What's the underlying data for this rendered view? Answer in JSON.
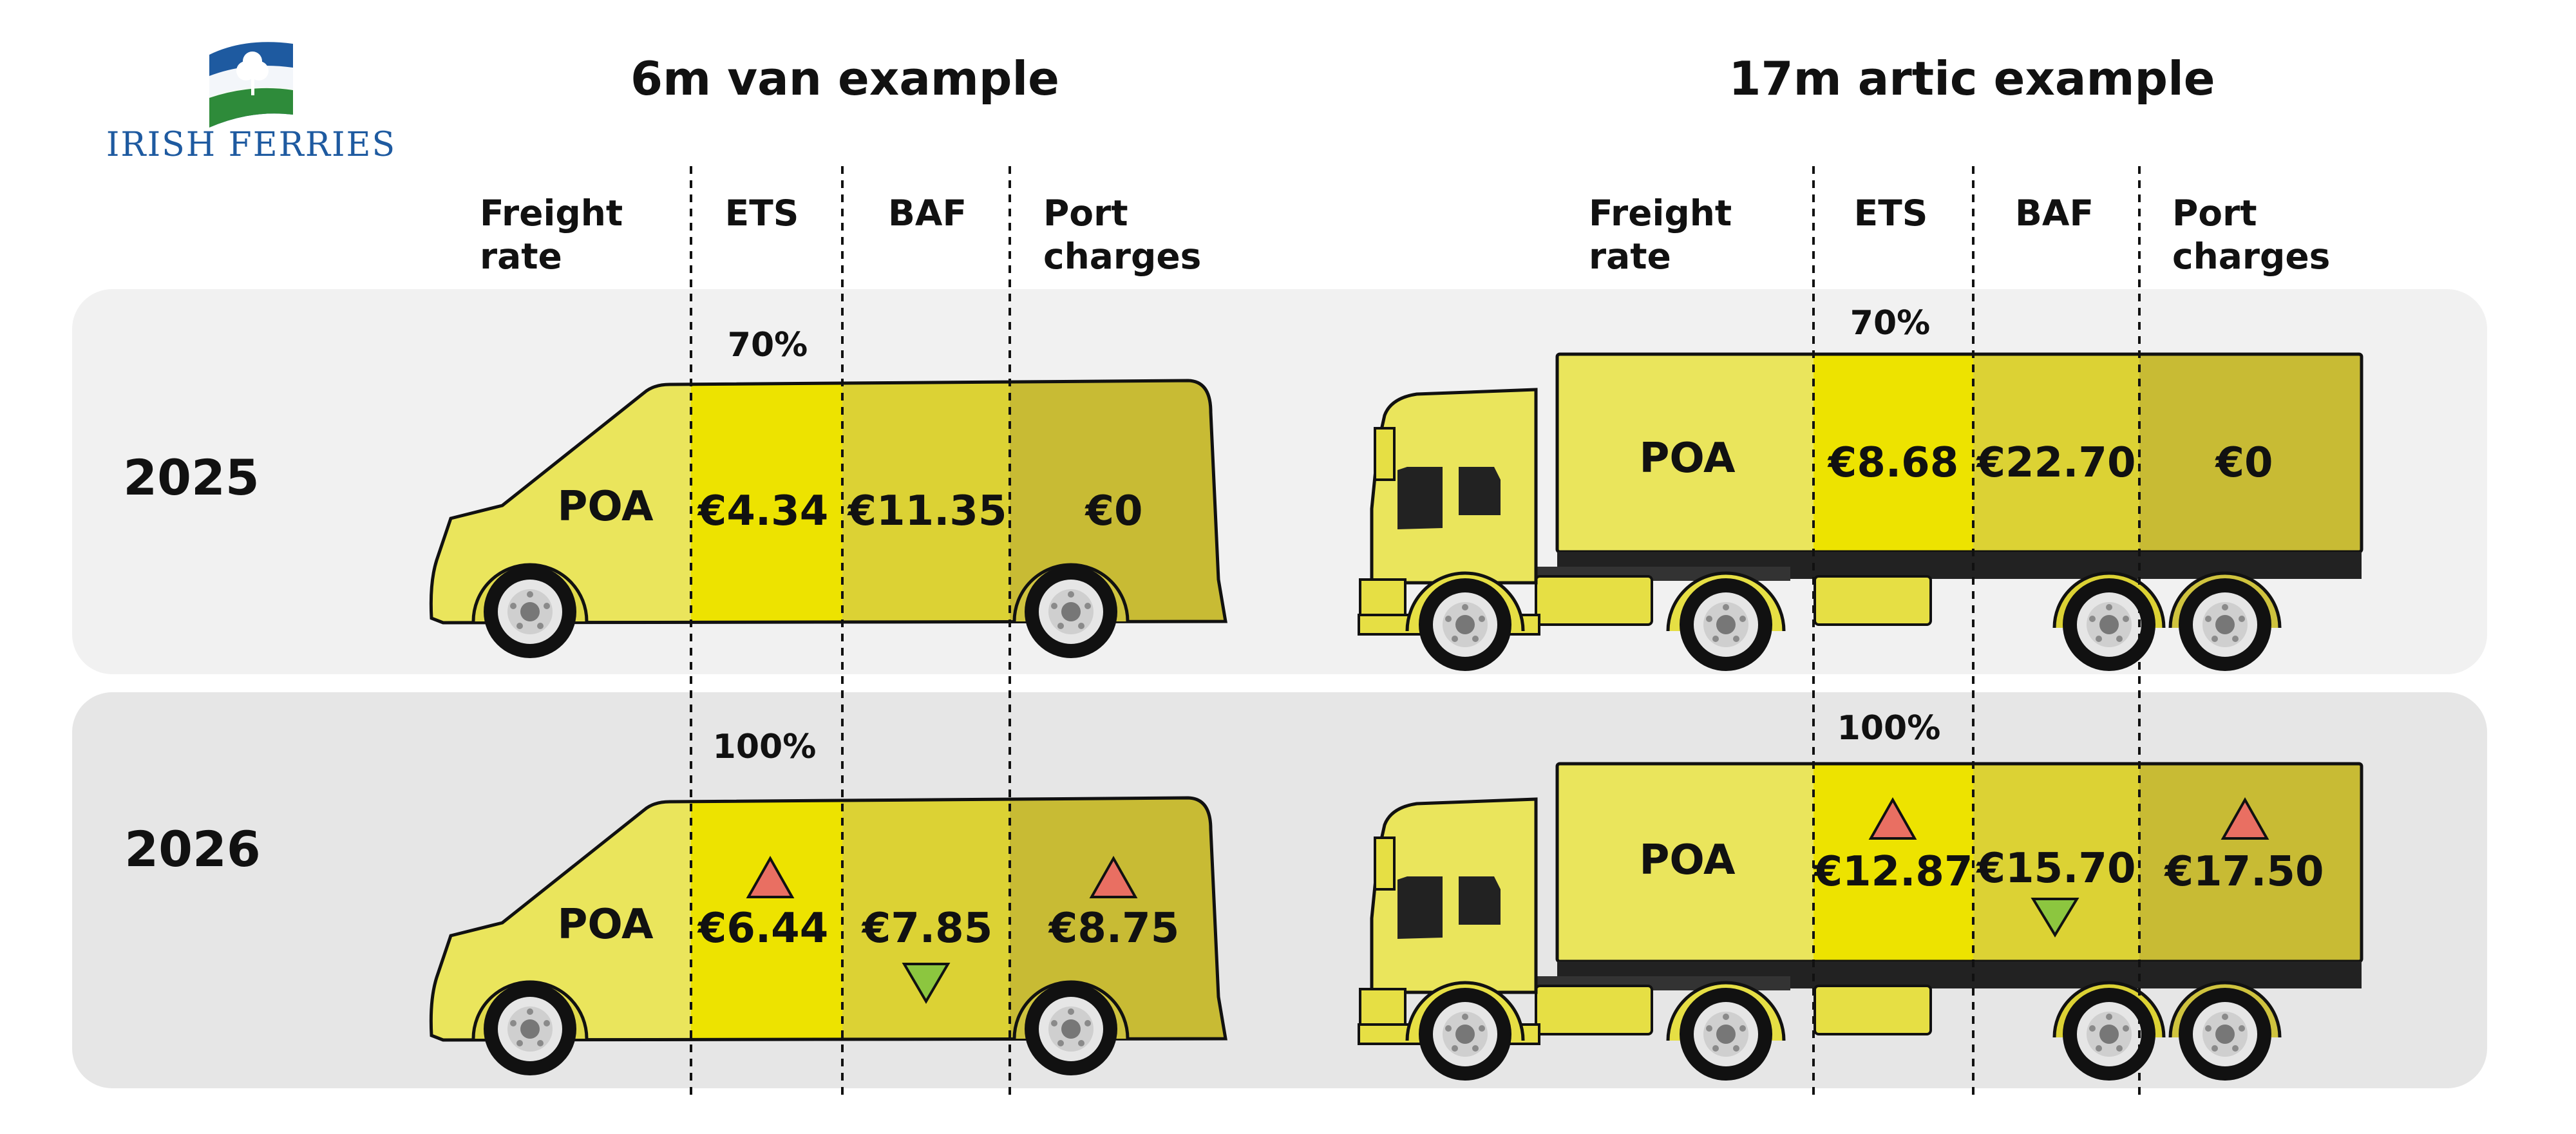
{
  "brand": {
    "name": "IRISH FERRIES"
  },
  "titles": {
    "van": "6m van example",
    "artic": "17m artic example"
  },
  "columns": {
    "freight": [
      "Freight",
      "rate"
    ],
    "ets": "ETS",
    "baf": "BAF",
    "port": [
      "Port",
      "charges"
    ]
  },
  "years": [
    {
      "year": "2025",
      "ets_percent": "70%",
      "van": {
        "freight": "POA",
        "ets": "€4.34",
        "baf": "€11.35",
        "port": "€0"
      },
      "artic": {
        "freight": "POA",
        "ets": "€8.68",
        "baf": "€22.70",
        "port": "€0"
      }
    },
    {
      "year": "2026",
      "ets_percent": "100%",
      "van": {
        "freight": "POA",
        "ets": "€6.44",
        "baf": "€7.85",
        "port": "€8.75"
      },
      "artic": {
        "freight": "POA",
        "ets": "€12.87",
        "baf": "€15.70",
        "port": "€17.50"
      }
    }
  ],
  "trend_2026": {
    "ets": "up",
    "baf": "down",
    "port": "up"
  },
  "colors": {
    "freight": "#eae55c",
    "ets": "#ede300",
    "baf": "#dcd234",
    "port": "#c8bb34",
    "row_2025": "#f1f1f1",
    "row_2026": "#e6e6e6",
    "up_arrow": "#e96f62",
    "down_arrow": "#8cc63f",
    "brand_blue": "#1e5aa0",
    "brand_green": "#2e8b3a"
  },
  "icons": [
    "irish-ferries-logo",
    "van-icon",
    "truck-icon",
    "up-arrow-icon",
    "down-arrow-icon"
  ]
}
